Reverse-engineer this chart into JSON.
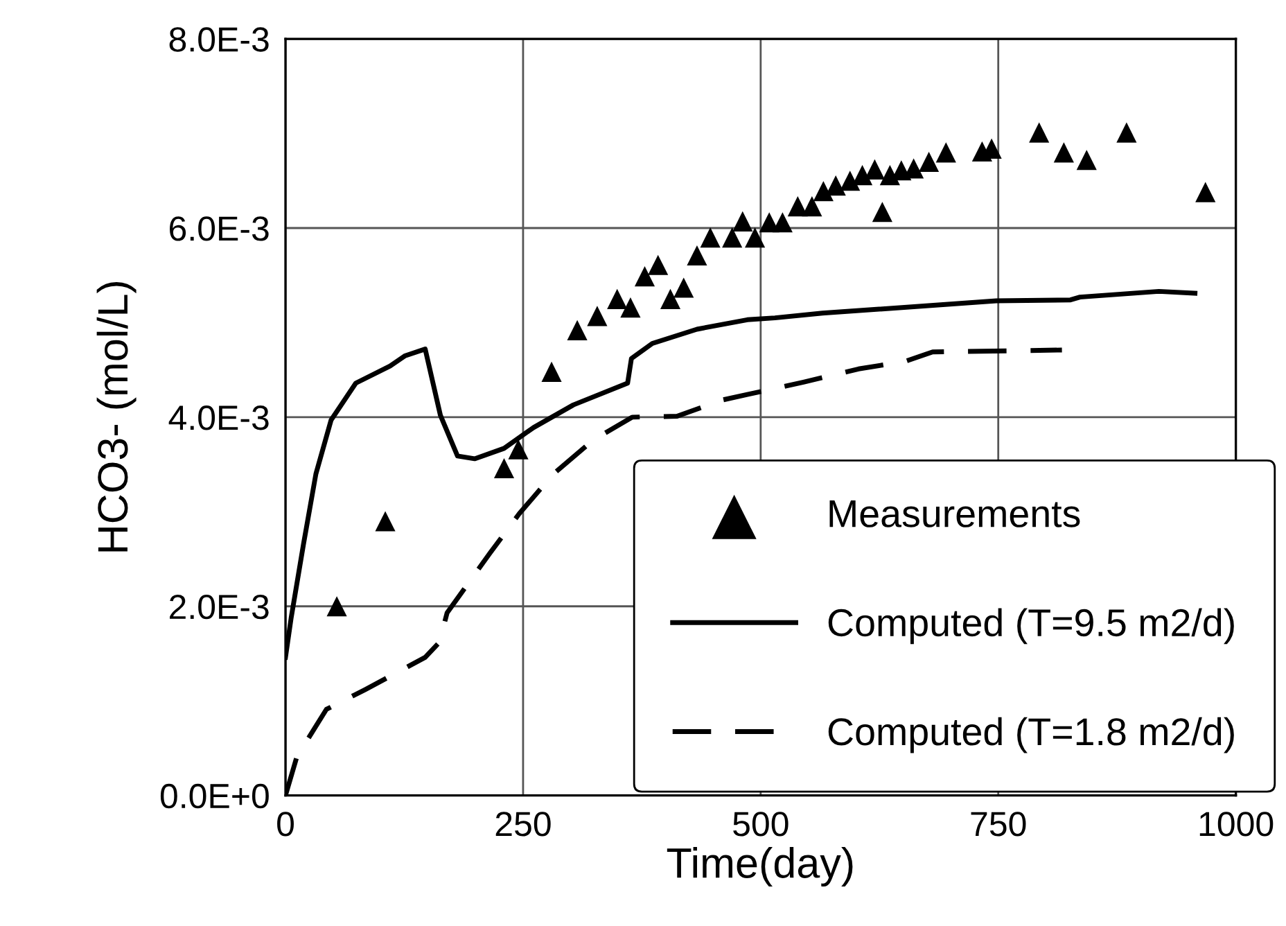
{
  "chart_data": {
    "type": "scatter",
    "xlabel": "Time(day)",
    "ylabel": "HCO3- (mol/L)",
    "xlim": [
      0,
      1000
    ],
    "xticks": [
      0,
      250,
      500,
      750,
      1000
    ],
    "ylim": [
      0,
      0.008
    ],
    "yticks": [
      {
        "value": 0,
        "label": "0.0E+0"
      },
      {
        "value": 0.002,
        "label": "2.0E-3"
      },
      {
        "value": 0.004,
        "label": "4.0E-3"
      },
      {
        "value": 0.006,
        "label": "6.0E-3"
      },
      {
        "value": 0.008,
        "label": "8.0E-3"
      }
    ],
    "grid": true,
    "legend": "bottom right",
    "series": [
      {
        "name": "Measurements",
        "marker": "triangle",
        "color": "#000000",
        "x": [
          54,
          105,
          230,
          245,
          280,
          307,
          328,
          349,
          363,
          378,
          392,
          405,
          419,
          433,
          447,
          470,
          481,
          494,
          509,
          523,
          539,
          554,
          566,
          579,
          594,
          607,
          620,
          628,
          636,
          648,
          661,
          677,
          695,
          733,
          743,
          793,
          819,
          843,
          885,
          968
        ],
        "values": [
          0.002,
          0.0029,
          0.00346,
          0.00366,
          0.00448,
          0.00492,
          0.00507,
          0.00525,
          0.00516,
          0.00549,
          0.00561,
          0.00525,
          0.00537,
          0.00571,
          0.0059,
          0.0059,
          0.00607,
          0.0059,
          0.00606,
          0.00606,
          0.00623,
          0.00623,
          0.00639,
          0.00645,
          0.0065,
          0.00656,
          0.00662,
          0.00617,
          0.00656,
          0.00661,
          0.00663,
          0.0067,
          0.0068,
          0.00681,
          0.00684,
          0.00701,
          0.0068,
          0.00672,
          0.00701,
          0.00638
        ]
      },
      {
        "name": "Computed (T=9.5 m2/d)",
        "type": "line",
        "line_style": "solid",
        "color": "#000000",
        "x": [
          0,
          6,
          19,
          32,
          48,
          74,
          110,
          126,
          147,
          163,
          181,
          199,
          230,
          261,
          303,
          360,
          364,
          386,
          433,
          486,
          515,
          565,
          748,
          826,
          836,
          919,
          957
        ],
        "values": [
          0.00146,
          0.00188,
          0.00266,
          0.0034,
          0.00397,
          0.00436,
          0.00454,
          0.00465,
          0.00472,
          0.00402,
          0.00359,
          0.00356,
          0.00367,
          0.00389,
          0.00413,
          0.00436,
          0.00462,
          0.00478,
          0.00493,
          0.00503,
          0.00505,
          0.0051,
          0.00523,
          0.00524,
          0.00527,
          0.00533,
          0.00531
        ]
      },
      {
        "name": "Computed (T=1.8 m2/d)",
        "type": "line",
        "line_style": "dashed",
        "color": "#000000",
        "x": [
          0,
          12,
          43,
          84,
          147,
          162,
          170,
          215,
          246,
          282,
          324,
          365,
          412,
          459,
          486,
          545,
          603,
          652,
          681,
          817
        ],
        "values": [
          0.0,
          0.00041,
          0.00091,
          0.00112,
          0.00146,
          0.00162,
          0.00193,
          0.00256,
          0.00298,
          0.0034,
          0.00376,
          0.004,
          0.00401,
          0.00418,
          0.00424,
          0.00437,
          0.00451,
          0.00459,
          0.00469,
          0.00471
        ]
      }
    ]
  }
}
